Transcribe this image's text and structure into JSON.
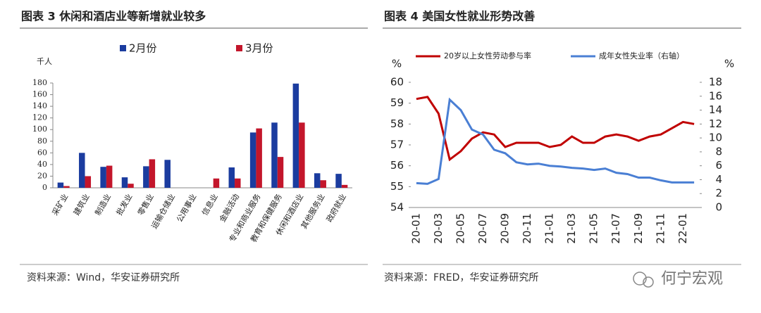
{
  "chart_data": [
    {
      "type": "bar",
      "title": "图表 3 休闲和酒店业等新增就业较多",
      "source": "资料来源：Wind，华安证券研究所",
      "ylabel": "千人",
      "categories": [
        "采矿业",
        "建筑业",
        "制造业",
        "批发业",
        "零售业",
        "运输仓储业",
        "公用事业",
        "信息业",
        "金融活动",
        "专业和商业服务",
        "教育和保健服务",
        "休闲和酒店业",
        "其他服务业",
        "政府就业"
      ],
      "series": [
        {
          "name": "2月份",
          "color": "#1b3c9f",
          "values": [
            9,
            60,
            36,
            18,
            37,
            48,
            0,
            0,
            35,
            95,
            112,
            179,
            25,
            24
          ]
        },
        {
          "name": "3月份",
          "color": "#c3162b",
          "values": [
            3,
            20,
            38,
            7,
            49,
            0,
            0,
            16,
            16,
            102,
            53,
            112,
            13,
            5
          ]
        }
      ],
      "ylim": [
        0,
        180
      ],
      "yticks": [
        0,
        20,
        40,
        60,
        80,
        100,
        120,
        140,
        160,
        180
      ]
    },
    {
      "type": "line",
      "title": "图表 4 美国女性就业形势改善",
      "source": "资料来源：FRED，华安证券研究所",
      "ylabel": "%",
      "y2label": "%",
      "categories": [
        "20-01",
        null,
        "20-03",
        null,
        "20-05",
        null,
        "20-07",
        null,
        "20-09",
        null,
        "20-11",
        null,
        "21-01",
        null,
        "21-03",
        null,
        "21-05",
        null,
        "21-07",
        null,
        "21-09",
        null,
        "21-11",
        null,
        "22-01",
        null
      ],
      "series": [
        {
          "name": "20岁以上女性劳动参与率",
          "color": "#c00000",
          "values": [
            59.2,
            59.3,
            58.5,
            56.3,
            56.7,
            57.3,
            57.6,
            57.5,
            56.9,
            57.1,
            57.1,
            57.1,
            56.9,
            57.0,
            57.4,
            57.1,
            57.1,
            57.4,
            57.5,
            57.4,
            57.2,
            57.4,
            57.5,
            57.8,
            58.1,
            58.0
          ]
        },
        {
          "name": "成年女性失业率（右轴）",
          "color": "#4a7fd4",
          "axis": "y2",
          "values": [
            3.5,
            3.4,
            4.1,
            15.5,
            14.0,
            11.2,
            10.5,
            8.3,
            7.8,
            6.5,
            6.2,
            6.3,
            6.0,
            5.9,
            5.7,
            5.6,
            5.4,
            5.6,
            5.0,
            4.8,
            4.3,
            4.3,
            3.9,
            3.6,
            3.6,
            3.6
          ]
        }
      ],
      "ylim": [
        54,
        60
      ],
      "yticks": [
        54,
        55,
        56,
        57,
        58,
        59,
        60
      ],
      "y2lim": [
        0,
        18
      ],
      "y2ticks": [
        0,
        2,
        4,
        6,
        8,
        10,
        12,
        14,
        16,
        18
      ]
    }
  ],
  "watermark": "何宁宏观"
}
